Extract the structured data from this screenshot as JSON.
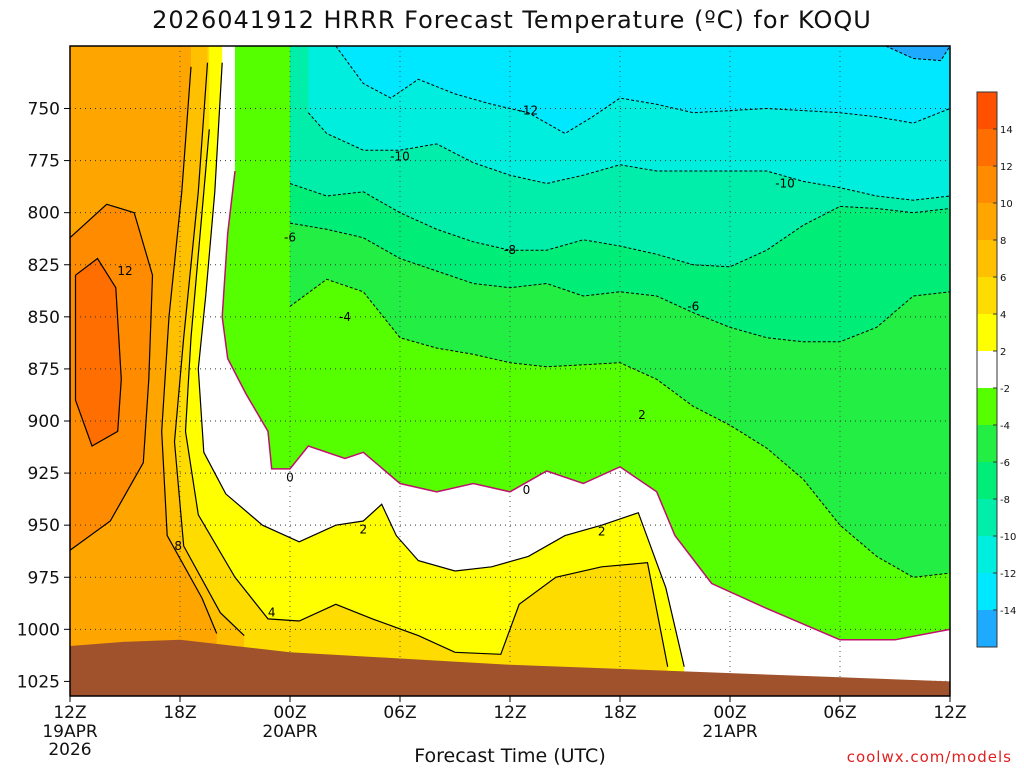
{
  "chart_data": {
    "type": "heatmap",
    "title": "2026041912 HRRR Forecast Temperature (ºC) for KOQU",
    "xlabel": "Forecast Time (UTC)",
    "ylabel": "",
    "credit": "coolwx.com/models",
    "x_range_hours": [
      0,
      48
    ],
    "y_range_hPa": [
      1032,
      720
    ],
    "y_ticks": [
      750,
      775,
      800,
      825,
      850,
      875,
      900,
      925,
      950,
      975,
      1000,
      1025
    ],
    "x_ticks": [
      {
        "h": 0,
        "label": "12Z",
        "sub": [
          "19APR",
          "2026"
        ]
      },
      {
        "h": 6,
        "label": "18Z",
        "sub": []
      },
      {
        "h": 12,
        "label": "00Z",
        "sub": [
          "20APR"
        ]
      },
      {
        "h": 18,
        "label": "06Z",
        "sub": []
      },
      {
        "h": 24,
        "label": "12Z",
        "sub": []
      },
      {
        "h": 30,
        "label": "18Z",
        "sub": []
      },
      {
        "h": 36,
        "label": "00Z",
        "sub": [
          "21APR"
        ]
      },
      {
        "h": 42,
        "label": "06Z",
        "sub": []
      },
      {
        "h": 48,
        "label": "12Z",
        "sub": []
      }
    ],
    "colorbar": [
      {
        "lo": 14,
        "hi": 16,
        "color": "#ff5000"
      },
      {
        "lo": 12,
        "hi": 14,
        "color": "#ff6e00"
      },
      {
        "lo": 10,
        "hi": 12,
        "color": "#ff8c00"
      },
      {
        "lo": 8,
        "hi": 10,
        "color": "#ffa500"
      },
      {
        "lo": 6,
        "hi": 8,
        "color": "#ffc000"
      },
      {
        "lo": 4,
        "hi": 6,
        "color": "#ffdc00"
      },
      {
        "lo": 2,
        "hi": 4,
        "color": "#ffff00"
      },
      {
        "lo": -2,
        "hi": 2,
        "color": "#ffffff"
      },
      {
        "lo": -4,
        "hi": -2,
        "color": "#55ff00"
      },
      {
        "lo": -6,
        "hi": -4,
        "color": "#22ee44"
      },
      {
        "lo": -8,
        "hi": -6,
        "color": "#00ee77"
      },
      {
        "lo": -10,
        "hi": -8,
        "color": "#00eeaa"
      },
      {
        "lo": -12,
        "hi": -10,
        "color": "#00eedd"
      },
      {
        "lo": -14,
        "hi": -12,
        "color": "#00e8ff"
      },
      {
        "lo": -16,
        "hi": -14,
        "color": "#1eaaff"
      }
    ],
    "colorbar_labels": [
      14,
      12,
      10,
      8,
      6,
      4,
      2,
      -2,
      -4,
      -6,
      -8,
      -10,
      -12,
      -14
    ],
    "surface_color": "#a0522d",
    "surface_pressure": [
      {
        "h": 0,
        "p": 1008
      },
      {
        "h": 3,
        "p": 1006
      },
      {
        "h": 6,
        "p": 1005
      },
      {
        "h": 9,
        "p": 1008
      },
      {
        "h": 12,
        "p": 1011
      },
      {
        "h": 18,
        "p": 1014
      },
      {
        "h": 24,
        "p": 1017
      },
      {
        "h": 30,
        "p": 1019
      },
      {
        "h": 36,
        "p": 1021
      },
      {
        "h": 42,
        "p": 1023
      },
      {
        "h": 48,
        "p": 1025
      }
    ],
    "isotherms": [
      {
        "value": 0,
        "style": "zero",
        "points": [
          {
            "h": 9.0,
            "p": 780
          },
          {
            "h": 8.6,
            "p": 810
          },
          {
            "h": 8.3,
            "p": 850
          },
          {
            "h": 8.6,
            "p": 870
          },
          {
            "h": 9.6,
            "p": 887
          },
          {
            "h": 10.8,
            "p": 905
          },
          {
            "h": 11.0,
            "p": 923
          },
          {
            "h": 12.0,
            "p": 923
          },
          {
            "h": 13,
            "p": 912
          },
          {
            "h": 15,
            "p": 918
          },
          {
            "h": 16,
            "p": 915
          },
          {
            "h": 18,
            "p": 930
          },
          {
            "h": 20,
            "p": 934
          },
          {
            "h": 22,
            "p": 930
          },
          {
            "h": 24,
            "p": 934
          },
          {
            "h": 26,
            "p": 924
          },
          {
            "h": 28,
            "p": 930
          },
          {
            "h": 30,
            "p": 922
          },
          {
            "h": 32,
            "p": 934
          },
          {
            "h": 33,
            "p": 955
          },
          {
            "h": 35,
            "p": 978
          },
          {
            "h": 38,
            "p": 990
          },
          {
            "h": 42,
            "p": 1005
          },
          {
            "h": 45,
            "p": 1005
          },
          {
            "h": 48,
            "p": 1000
          }
        ]
      },
      {
        "value": 2,
        "style": "solid",
        "points": [
          {
            "h": 8.3,
            "p": 728
          },
          {
            "h": 7.9,
            "p": 790
          },
          {
            "h": 7.4,
            "p": 840
          },
          {
            "h": 7.0,
            "p": 875
          },
          {
            "h": 7.3,
            "p": 915
          },
          {
            "h": 8.5,
            "p": 935
          },
          {
            "h": 10.5,
            "p": 950
          },
          {
            "h": 12.5,
            "p": 958
          },
          {
            "h": 14.5,
            "p": 950
          },
          {
            "h": 16,
            "p": 948
          },
          {
            "h": 17,
            "p": 940
          },
          {
            "h": 17.8,
            "p": 955
          },
          {
            "h": 19,
            "p": 967
          },
          {
            "h": 21,
            "p": 972
          },
          {
            "h": 23,
            "p": 970
          },
          {
            "h": 25,
            "p": 965
          },
          {
            "h": 27,
            "p": 955
          },
          {
            "h": 29,
            "p": 950
          },
          {
            "h": 31,
            "p": 944
          },
          {
            "h": 32.5,
            "p": 980
          },
          {
            "h": 33.5,
            "p": 1018
          }
        ]
      },
      {
        "value": 4,
        "style": "solid",
        "points": [
          {
            "h": 7.6,
            "p": 760
          },
          {
            "h": 7.2,
            "p": 800
          },
          {
            "h": 6.6,
            "p": 860
          },
          {
            "h": 6.3,
            "p": 905
          },
          {
            "h": 7.0,
            "p": 945
          },
          {
            "h": 9.0,
            "p": 975
          },
          {
            "h": 10.8,
            "p": 995
          },
          {
            "h": 12.5,
            "p": 996
          },
          {
            "h": 14.5,
            "p": 988
          },
          {
            "h": 16.5,
            "p": 995
          },
          {
            "h": 19,
            "p": 1003
          },
          {
            "h": 21,
            "p": 1011
          },
          {
            "h": 23.5,
            "p": 1012
          },
          {
            "h": 24.5,
            "p": 988
          },
          {
            "h": 26.5,
            "p": 975
          },
          {
            "h": 29,
            "p": 970
          },
          {
            "h": 31.5,
            "p": 968
          },
          {
            "h": 32.6,
            "p": 1018
          }
        ]
      },
      {
        "value": 6,
        "style": "solid",
        "points": [
          {
            "h": 7.5,
            "p": 728
          },
          {
            "h": 7.0,
            "p": 790
          },
          {
            "h": 6.2,
            "p": 860
          },
          {
            "h": 5.7,
            "p": 910
          },
          {
            "h": 6.2,
            "p": 960
          },
          {
            "h": 8.2,
            "p": 992
          },
          {
            "h": 9.5,
            "p": 1003
          }
        ]
      },
      {
        "value": 8,
        "style": "solid",
        "points": [
          {
            "h": 6.6,
            "p": 730
          },
          {
            "h": 6.1,
            "p": 790
          },
          {
            "h": 5.4,
            "p": 850
          },
          {
            "h": 5.0,
            "p": 905
          },
          {
            "h": 5.3,
            "p": 955
          },
          {
            "h": 7.2,
            "p": 985
          },
          {
            "h": 8.0,
            "p": 1002
          }
        ]
      },
      {
        "value": 10,
        "style": "solid",
        "points": [
          {
            "h": 0.0,
            "p": 812
          },
          {
            "h": 2.0,
            "p": 796
          },
          {
            "h": 3.5,
            "p": 800
          },
          {
            "h": 4.5,
            "p": 830
          },
          {
            "h": 4.3,
            "p": 880
          },
          {
            "h": 4.0,
            "p": 920
          },
          {
            "h": 2.2,
            "p": 948
          },
          {
            "h": 0.0,
            "p": 962
          }
        ]
      },
      {
        "value": 12,
        "style": "solid",
        "points": [
          {
            "h": 0.3,
            "p": 830
          },
          {
            "h": 1.5,
            "p": 822
          },
          {
            "h": 2.5,
            "p": 836
          },
          {
            "h": 2.8,
            "p": 880
          },
          {
            "h": 2.6,
            "p": 905
          },
          {
            "h": 1.2,
            "p": 912
          },
          {
            "h": 0.3,
            "p": 890
          }
        ]
      },
      {
        "value": -4,
        "style": "dashed",
        "points": [
          {
            "h": 12,
            "p": 845
          },
          {
            "h": 14,
            "p": 832
          },
          {
            "h": 16,
            "p": 838
          },
          {
            "h": 18,
            "p": 860
          },
          {
            "h": 20,
            "p": 865
          },
          {
            "h": 22,
            "p": 868
          },
          {
            "h": 24,
            "p": 872
          },
          {
            "h": 26,
            "p": 874
          },
          {
            "h": 28,
            "p": 873
          },
          {
            "h": 30,
            "p": 872
          },
          {
            "h": 32,
            "p": 880
          },
          {
            "h": 34,
            "p": 893
          },
          {
            "h": 36,
            "p": 902
          },
          {
            "h": 38,
            "p": 913
          },
          {
            "h": 40,
            "p": 928
          },
          {
            "h": 42,
            "p": 950
          },
          {
            "h": 44,
            "p": 965
          },
          {
            "h": 46,
            "p": 975
          },
          {
            "h": 48,
            "p": 973
          }
        ]
      },
      {
        "value": -6,
        "style": "dashed",
        "points": [
          {
            "h": 12,
            "p": 805
          },
          {
            "h": 14,
            "p": 808
          },
          {
            "h": 16,
            "p": 812
          },
          {
            "h": 18,
            "p": 822
          },
          {
            "h": 20,
            "p": 828
          },
          {
            "h": 22,
            "p": 834
          },
          {
            "h": 24,
            "p": 836
          },
          {
            "h": 26,
            "p": 834
          },
          {
            "h": 28,
            "p": 840
          },
          {
            "h": 30,
            "p": 838
          },
          {
            "h": 32,
            "p": 840
          },
          {
            "h": 34,
            "p": 848
          },
          {
            "h": 36,
            "p": 855
          },
          {
            "h": 38,
            "p": 860
          },
          {
            "h": 40,
            "p": 862
          },
          {
            "h": 42,
            "p": 862
          },
          {
            "h": 44,
            "p": 855
          },
          {
            "h": 46,
            "p": 840
          },
          {
            "h": 48,
            "p": 838
          }
        ]
      },
      {
        "value": -8,
        "style": "dashed",
        "points": [
          {
            "h": 12,
            "p": 786
          },
          {
            "h": 14,
            "p": 792
          },
          {
            "h": 16,
            "p": 790
          },
          {
            "h": 18,
            "p": 800
          },
          {
            "h": 20,
            "p": 808
          },
          {
            "h": 22,
            "p": 814
          },
          {
            "h": 24,
            "p": 818
          },
          {
            "h": 26,
            "p": 818
          },
          {
            "h": 28,
            "p": 813
          },
          {
            "h": 30,
            "p": 816
          },
          {
            "h": 32,
            "p": 820
          },
          {
            "h": 34,
            "p": 825
          },
          {
            "h": 36,
            "p": 826
          },
          {
            "h": 38,
            "p": 818
          },
          {
            "h": 40,
            "p": 806
          },
          {
            "h": 42,
            "p": 797
          },
          {
            "h": 44,
            "p": 798
          },
          {
            "h": 46,
            "p": 800
          },
          {
            "h": 48,
            "p": 798
          }
        ]
      },
      {
        "value": -10,
        "style": "dashed",
        "points": [
          {
            "h": 13,
            "p": 752
          },
          {
            "h": 14,
            "p": 762
          },
          {
            "h": 16,
            "p": 770
          },
          {
            "h": 18,
            "p": 770
          },
          {
            "h": 20,
            "p": 767
          },
          {
            "h": 22,
            "p": 776
          },
          {
            "h": 24,
            "p": 782
          },
          {
            "h": 26,
            "p": 786
          },
          {
            "h": 28,
            "p": 782
          },
          {
            "h": 30,
            "p": 777
          },
          {
            "h": 32,
            "p": 780
          },
          {
            "h": 34,
            "p": 780
          },
          {
            "h": 36,
            "p": 780
          },
          {
            "h": 38,
            "p": 780
          },
          {
            "h": 40,
            "p": 785
          },
          {
            "h": 42,
            "p": 788
          },
          {
            "h": 44,
            "p": 792
          },
          {
            "h": 46,
            "p": 794
          },
          {
            "h": 48,
            "p": 792
          }
        ]
      },
      {
        "value": -12,
        "style": "dashed",
        "points": [
          {
            "h": 14.5,
            "p": 720
          },
          {
            "h": 16,
            "p": 738
          },
          {
            "h": 17.5,
            "p": 745
          },
          {
            "h": 19,
            "p": 736
          },
          {
            "h": 21,
            "p": 743
          },
          {
            "h": 23,
            "p": 748
          },
          {
            "h": 25,
            "p": 752
          },
          {
            "h": 27,
            "p": 762
          },
          {
            "h": 28.5,
            "p": 754
          },
          {
            "h": 30,
            "p": 745
          },
          {
            "h": 32,
            "p": 748
          },
          {
            "h": 34,
            "p": 752
          },
          {
            "h": 36,
            "p": 751
          },
          {
            "h": 38,
            "p": 750
          },
          {
            "h": 40,
            "p": 751
          },
          {
            "h": 42,
            "p": 752
          },
          {
            "h": 44,
            "p": 754
          },
          {
            "h": 46,
            "p": 757
          },
          {
            "h": 48,
            "p": 750
          }
        ]
      },
      {
        "value": -14,
        "style": "dashed",
        "points": [
          {
            "h": 44.5,
            "p": 720
          },
          {
            "h": 46,
            "p": 726
          },
          {
            "h": 47.5,
            "p": 727
          },
          {
            "h": 48,
            "p": 720
          }
        ]
      }
    ],
    "contour_labels": [
      {
        "text": "12",
        "h": 3.0,
        "p": 828
      },
      {
        "text": "8",
        "h": 5.9,
        "p": 960
      },
      {
        "text": "4",
        "h": 11.0,
        "p": 992
      },
      {
        "text": "2",
        "h": 16.0,
        "p": 952
      },
      {
        "text": "2",
        "h": 29.0,
        "p": 953
      },
      {
        "text": "2",
        "h": 31.2,
        "p": 897
      },
      {
        "text": "0",
        "h": 12.0,
        "p": 927
      },
      {
        "text": "0",
        "h": 24.9,
        "p": 933
      },
      {
        "text": "-4",
        "h": 15.0,
        "p": 850
      },
      {
        "text": "-6",
        "h": 12.0,
        "p": 812
      },
      {
        "text": "-6",
        "h": 34.0,
        "p": 845
      },
      {
        "text": "-8",
        "h": 24.0,
        "p": 818
      },
      {
        "text": "-10",
        "h": 18.0,
        "p": 773
      },
      {
        "text": "-10",
        "h": 39.0,
        "p": 786
      },
      {
        "text": "-12",
        "h": 25.0,
        "p": 751
      }
    ]
  }
}
